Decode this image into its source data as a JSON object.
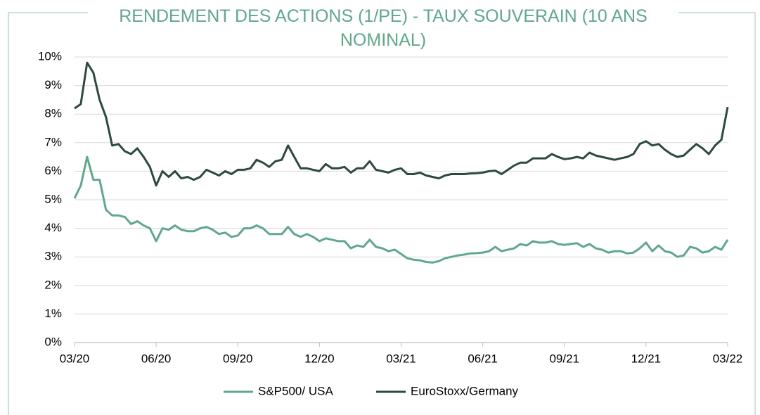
{
  "chart_data": {
    "type": "line",
    "title": "RENDEMENT DES ACTIONS (1/PE) - TAUX SOUVERAIN (10 ANS NOMINAL)",
    "categories": [
      "03/20",
      null,
      null,
      null,
      null,
      null,
      null,
      null,
      null,
      null,
      null,
      null,
      null,
      "06/20",
      null,
      null,
      null,
      null,
      null,
      null,
      null,
      null,
      null,
      null,
      null,
      null,
      "09/20",
      null,
      null,
      null,
      null,
      null,
      null,
      null,
      null,
      null,
      null,
      null,
      null,
      "12/20",
      null,
      null,
      null,
      null,
      null,
      null,
      null,
      null,
      null,
      null,
      null,
      null,
      "03/21",
      null,
      null,
      null,
      null,
      null,
      null,
      null,
      null,
      null,
      null,
      null,
      null,
      "06/21",
      null,
      null,
      null,
      null,
      null,
      null,
      null,
      null,
      null,
      null,
      null,
      null,
      "09/21",
      null,
      null,
      null,
      null,
      null,
      null,
      null,
      null,
      null,
      null,
      null,
      null,
      "12/21",
      null,
      null,
      null,
      null,
      null,
      null,
      null,
      null,
      null,
      null,
      null,
      null,
      "03/22"
    ],
    "series": [
      {
        "name": "S&P500/ USA",
        "color": "#5fa98a",
        "values": [
          5.05,
          5.5,
          6.5,
          5.7,
          5.7,
          4.65,
          4.45,
          4.45,
          4.4,
          4.15,
          4.25,
          4.1,
          4.0,
          3.55,
          4.0,
          3.95,
          4.1,
          3.95,
          3.9,
          3.9,
          4.0,
          4.05,
          3.95,
          3.8,
          3.85,
          3.7,
          3.75,
          4.0,
          4.0,
          4.1,
          4.0,
          3.8,
          3.8,
          3.8,
          4.05,
          3.8,
          3.7,
          3.8,
          3.7,
          3.55,
          3.65,
          3.6,
          3.55,
          3.55,
          3.3,
          3.4,
          3.35,
          3.6,
          3.35,
          3.3,
          3.2,
          3.25,
          3.1,
          2.95,
          2.9,
          2.88,
          2.82,
          2.8,
          2.85,
          2.95,
          3.0,
          3.05,
          3.08,
          3.12,
          3.13,
          3.15,
          3.2,
          3.35,
          3.2,
          3.25,
          3.3,
          3.45,
          3.4,
          3.55,
          3.5,
          3.5,
          3.55,
          3.45,
          3.42,
          3.45,
          3.48,
          3.35,
          3.45,
          3.3,
          3.25,
          3.15,
          3.2,
          3.2,
          3.12,
          3.15,
          3.3,
          3.5,
          3.2,
          3.4,
          3.2,
          3.15,
          3.0,
          3.05,
          3.35,
          3.3,
          3.15,
          3.2,
          3.35,
          3.25,
          3.6
        ]
      },
      {
        "name": "EuroStoxx/Germany",
        "color": "#2d4a3e",
        "values": [
          8.2,
          8.35,
          9.8,
          9.45,
          8.5,
          7.9,
          6.9,
          6.95,
          6.7,
          6.6,
          6.8,
          6.5,
          6.15,
          5.5,
          6.0,
          5.8,
          6.0,
          5.75,
          5.8,
          5.7,
          5.8,
          6.05,
          5.95,
          5.85,
          6.0,
          5.9,
          6.05,
          6.05,
          6.1,
          6.4,
          6.3,
          6.15,
          6.35,
          6.4,
          6.9,
          6.5,
          6.1,
          6.1,
          6.05,
          6.0,
          6.25,
          6.1,
          6.1,
          6.15,
          5.95,
          6.1,
          6.1,
          6.35,
          6.05,
          6.0,
          5.95,
          6.05,
          6.1,
          5.9,
          5.9,
          5.95,
          5.85,
          5.8,
          5.75,
          5.85,
          5.9,
          5.9,
          5.9,
          5.92,
          5.93,
          5.95,
          6.0,
          6.02,
          5.9,
          6.05,
          6.2,
          6.3,
          6.3,
          6.45,
          6.45,
          6.45,
          6.6,
          6.5,
          6.42,
          6.45,
          6.5,
          6.45,
          6.65,
          6.55,
          6.5,
          6.45,
          6.4,
          6.45,
          6.5,
          6.6,
          6.95,
          7.05,
          6.9,
          6.95,
          6.75,
          6.6,
          6.5,
          6.55,
          6.75,
          6.95,
          6.8,
          6.6,
          6.9,
          7.1,
          8.25
        ]
      }
    ],
    "ylim": [
      0,
      10
    ],
    "yticks": [
      {
        "value": 0,
        "label": "0%"
      },
      {
        "value": 1,
        "label": "1%"
      },
      {
        "value": 2,
        "label": "2%"
      },
      {
        "value": 3,
        "label": "3%"
      },
      {
        "value": 4,
        "label": "4%"
      },
      {
        "value": 5,
        "label": "5%"
      },
      {
        "value": 6,
        "label": "6%"
      },
      {
        "value": 7,
        "label": "7%"
      },
      {
        "value": 8,
        "label": "8%"
      },
      {
        "value": 9,
        "label": "9%"
      },
      {
        "value": 10,
        "label": "10%"
      }
    ],
    "grid": true,
    "legend": "bottom"
  }
}
